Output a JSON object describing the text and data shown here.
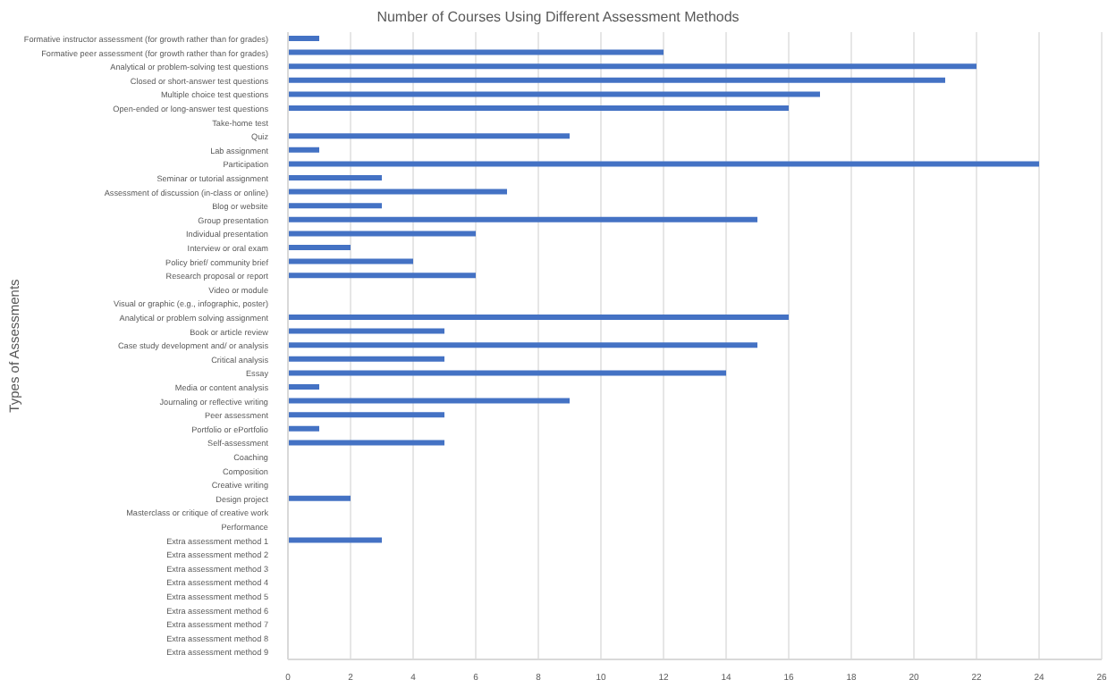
{
  "chart_data": {
    "type": "bar",
    "orientation": "horizontal",
    "title": "Number of Courses Using Different Assessment Methods",
    "ylabel": "Types of Assessments",
    "categories": [
      "Formative instructor assessment (for growth rather than for grades)",
      "Formative peer assessment (for growth rather than for grades)",
      "Analytical or problem-solving test questions",
      "Closed or short-answer test questions",
      "Multiple choice test questions",
      "Open-ended or long-answer test questions",
      "Take-home test",
      "Quiz",
      "Lab assignment",
      "Participation",
      "Seminar or tutorial assignment",
      "Assessment of discussion (in-class or online)",
      "Blog or website",
      "Group presentation",
      "Individual presentation",
      "Interview or oral exam",
      "Policy brief/ community brief",
      "Research proposal or report",
      "Video or module",
      "Visual or graphic (e.g., infographic, poster)",
      "Analytical or problem solving assignment",
      "Book or article review",
      "Case study development and/ or analysis",
      "Critical analysis",
      "Essay",
      "Media or content analysis",
      "Journaling or reflective writing",
      "Peer assessment",
      "Portfolio or ePortfolio",
      "Self-assessment",
      "Coaching",
      "Composition",
      "Creative writing",
      "Design project",
      "Masterclass or critique of creative work",
      "Performance",
      "Extra assessment method 1",
      "Extra assessment method 2",
      "Extra assessment method 3",
      "Extra assessment method 4",
      "Extra assessment method 5",
      "Extra assessment method 6",
      "Extra assessment method 7",
      "Extra assessment method 8",
      "Extra assessment method 9"
    ],
    "values": [
      1,
      12,
      22,
      21,
      17,
      16,
      0,
      9,
      1,
      24,
      3,
      7,
      3,
      15,
      6,
      2,
      4,
      6,
      0,
      0,
      16,
      5,
      15,
      5,
      14,
      1,
      9,
      5,
      1,
      5,
      0,
      0,
      0,
      2,
      0,
      0,
      3,
      0,
      0,
      0,
      0,
      0,
      0,
      0,
      0
    ],
    "color": "#4472c4",
    "xlim": [
      0,
      26
    ],
    "xticks": [
      0,
      2,
      4,
      6,
      8,
      10,
      12,
      14,
      16,
      18,
      20,
      22,
      24,
      26
    ],
    "grid": "x"
  }
}
